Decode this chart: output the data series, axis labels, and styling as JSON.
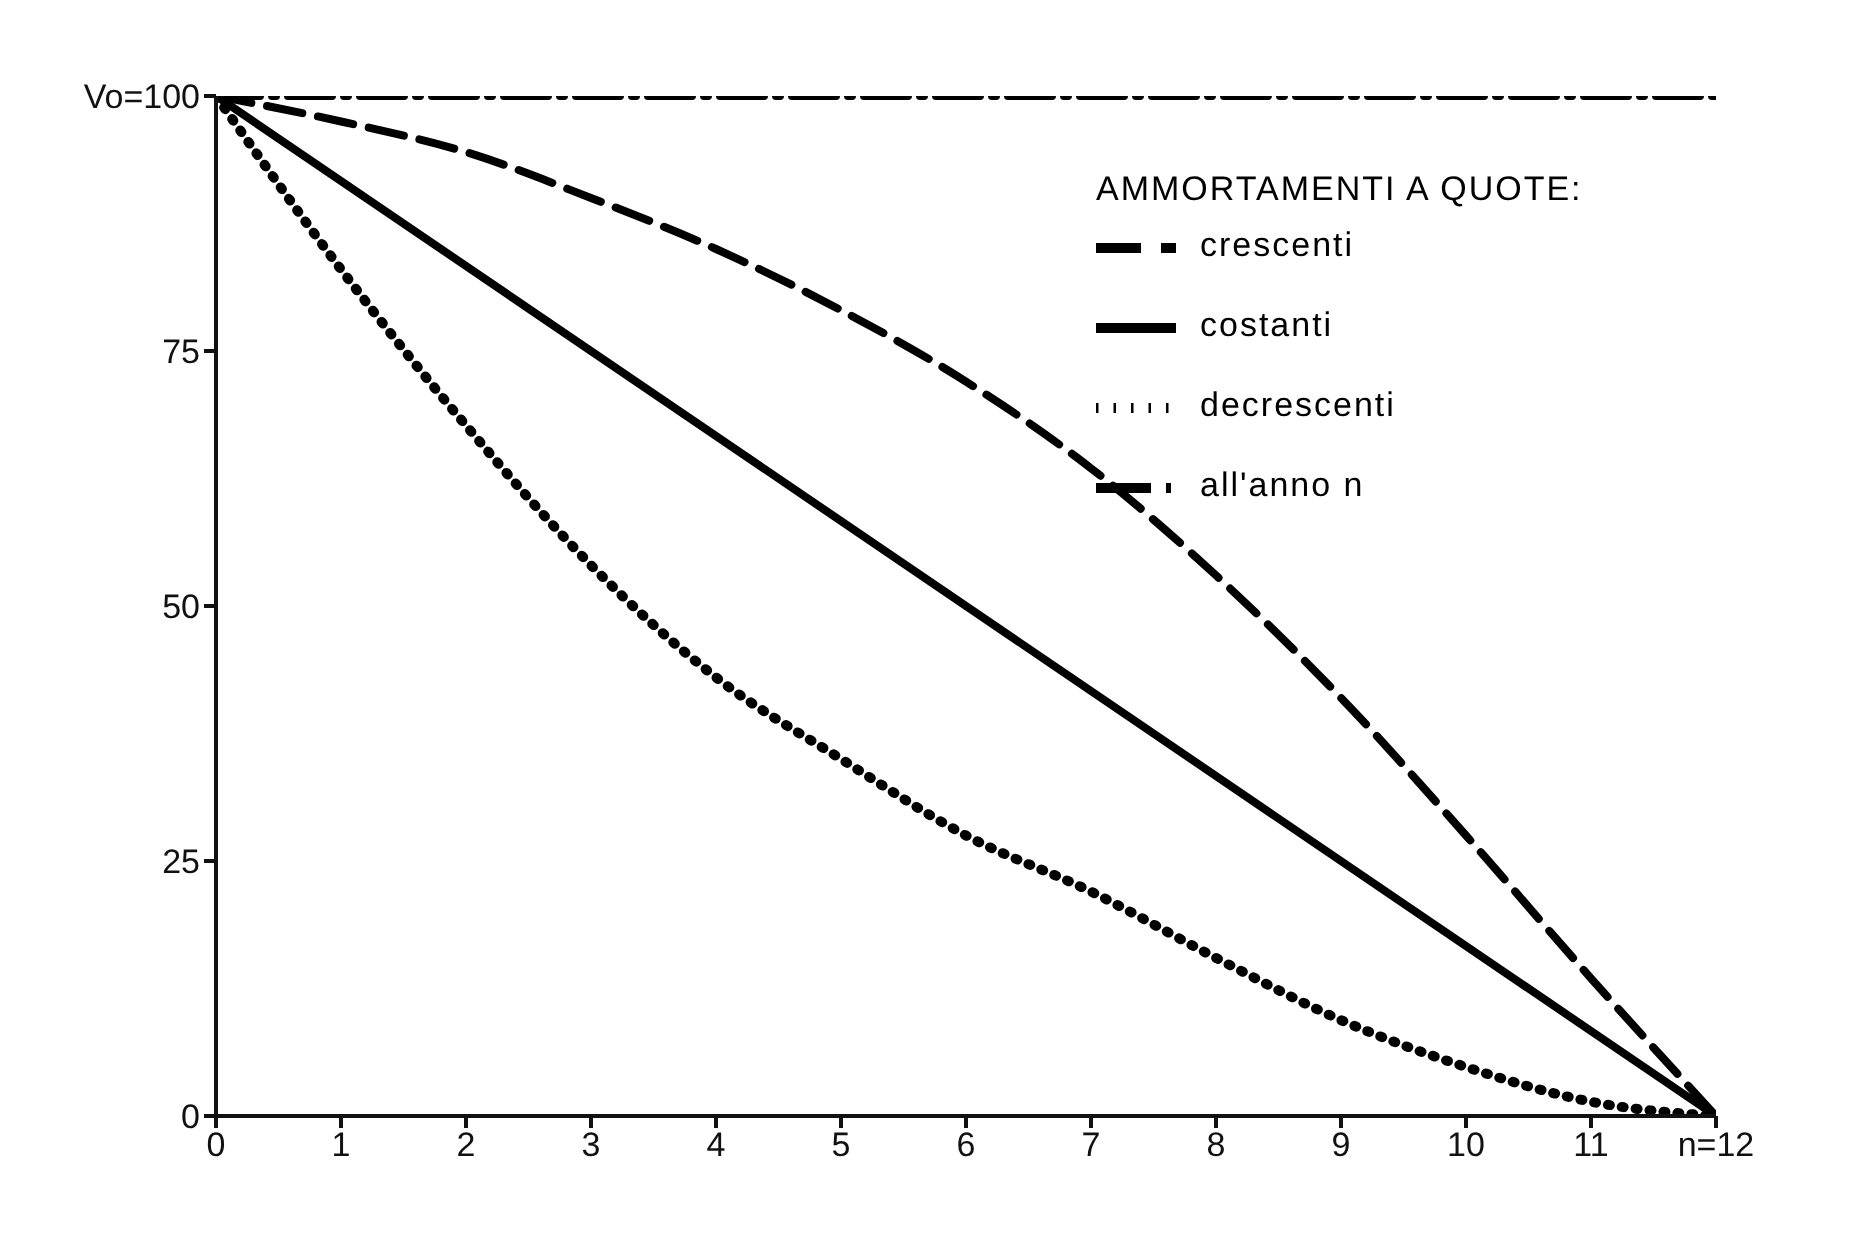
{
  "chart_data": {
    "type": "line",
    "legend_title": "AMMORTAMENTI A QUOTE:",
    "legend": "top right",
    "grid": false,
    "marker": "none",
    "xlim": [
      0,
      12
    ],
    "xticks": [
      0,
      1,
      2,
      3,
      4,
      5,
      6,
      7,
      8,
      9,
      10,
      11,
      {
        "value": 12,
        "label": "n=12"
      }
    ],
    "ylim": [
      0,
      100
    ],
    "yticks": [
      0,
      25,
      50,
      75,
      {
        "value": 100,
        "label": "Vo=100"
      }
    ],
    "series": [
      {
        "name": "crescenti",
        "color": "#000000",
        "line_style": "dashed",
        "x": [
          0,
          1,
          2,
          3,
          4,
          5,
          6,
          7,
          8,
          9,
          10,
          11,
          12
        ],
        "values": [
          100,
          97.5,
          94.5,
          90,
          85,
          79,
          72,
          63.5,
          53,
          41,
          27.5,
          13.5,
          0
        ]
      },
      {
        "name": "costanti",
        "color": "#000000",
        "line_style": "solid",
        "x": [
          0,
          12
        ],
        "values": [
          100,
          0
        ]
      },
      {
        "name": "decrescenti",
        "color": "#000000",
        "line_style": "dotted",
        "x": [
          0,
          1,
          2,
          3,
          4,
          5,
          6,
          7,
          8,
          9,
          10,
          11,
          12
        ],
        "values": [
          100,
          83,
          67.7,
          54,
          43,
          35,
          27.5,
          22,
          15.5,
          9.4,
          4.8,
          1.4,
          0
        ]
      },
      {
        "name": "all'anno n",
        "color": "#000000",
        "line_style": "dashdot",
        "x": [
          0,
          12
        ],
        "values": [
          100,
          100
        ]
      }
    ]
  }
}
